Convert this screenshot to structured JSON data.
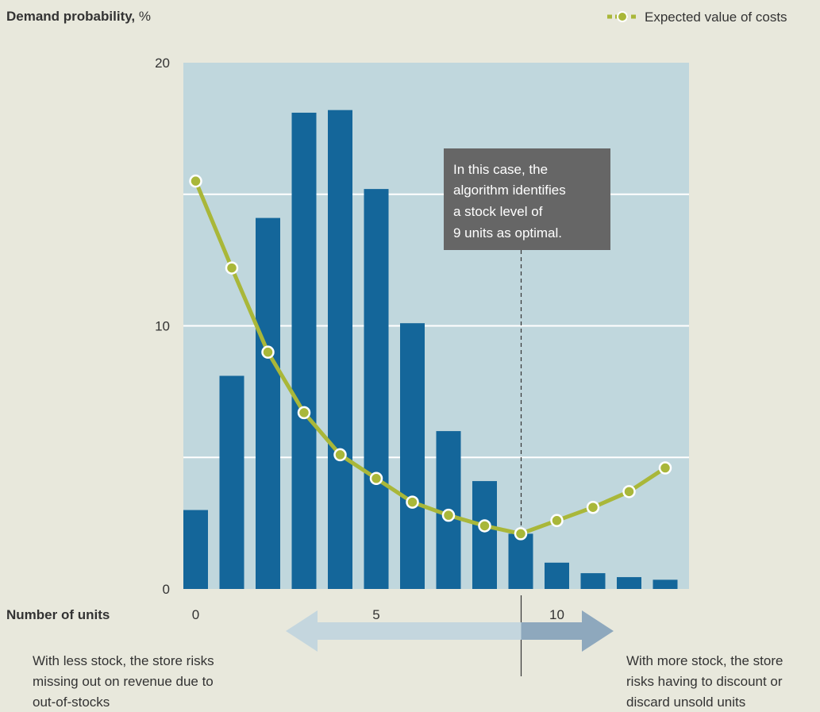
{
  "chart_data": {
    "type": "bar+line",
    "ylabel_bold": "Demand probability,",
    "ylabel_unit": " %",
    "xlabel": "Number of units",
    "x": [
      0,
      1,
      2,
      3,
      4,
      5,
      6,
      7,
      8,
      9,
      10,
      11,
      12,
      13
    ],
    "xticks": [
      0,
      5,
      10
    ],
    "yticks": [
      0,
      10,
      20
    ],
    "ylim": [
      0,
      20
    ],
    "grid": true,
    "bars": {
      "name": "Demand probability",
      "values": [
        3.0,
        8.1,
        14.1,
        18.1,
        18.2,
        15.2,
        10.1,
        6.0,
        4.1,
        2.1,
        1.0,
        0.6,
        0.45,
        0.35
      ]
    },
    "line": {
      "name": "Expected value of costs",
      "values": [
        15.5,
        12.2,
        9.0,
        6.7,
        5.1,
        4.2,
        3.3,
        2.8,
        2.4,
        2.1,
        2.6,
        3.1,
        3.7,
        4.6
      ]
    },
    "legend": {
      "label": "Expected value of costs",
      "placement": "top-right"
    },
    "annotation": {
      "lines": [
        "In this case, the",
        "algorithm identifies",
        "a stock level of",
        "9 units as optimal."
      ],
      "x": 9
    },
    "left_note": [
      "With less stock, the store risks",
      "missing out on revenue due to",
      "out-of-stocks"
    ],
    "right_note": [
      "With more stock, the store",
      "risks having to discount or",
      "discard unsold units"
    ],
    "colors": {
      "background": "#e8e8dc",
      "plot": "#c0d7dd",
      "bar": "#14669a",
      "line": "#a9b739",
      "annotation_bg": "#666666",
      "arrow_left": "#c4d6de",
      "arrow_right": "#8ea8bd",
      "text": "#333333"
    }
  }
}
